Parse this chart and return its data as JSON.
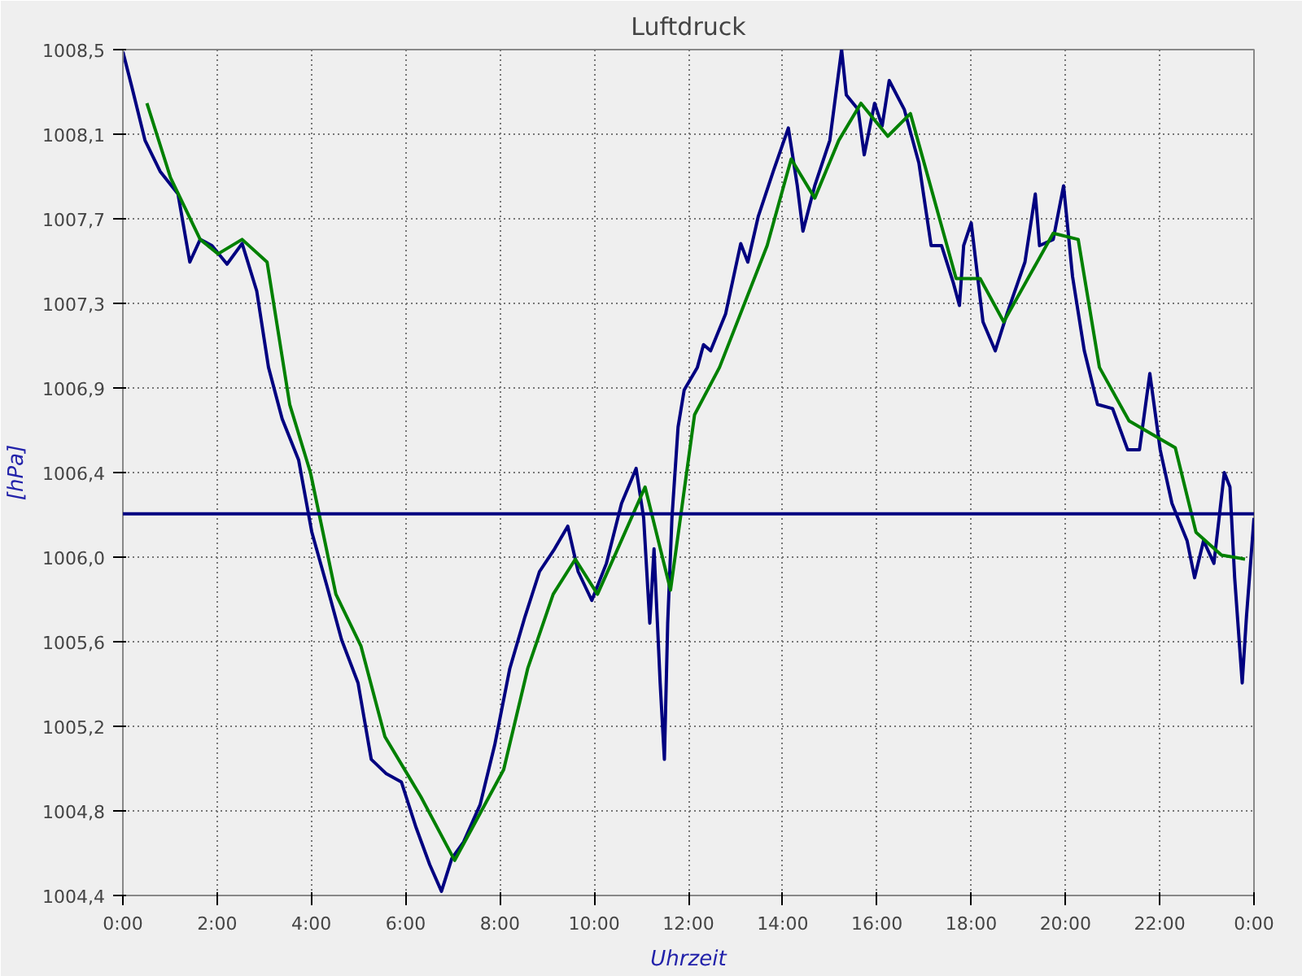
{
  "chart_data": {
    "type": "line",
    "title": "Luftdruck",
    "xlabel": "Uhrzeit",
    "ylabel": "[hPa]",
    "xlim": [
      0,
      24
    ],
    "ylim": [
      1004.4,
      1008.5
    ],
    "xticks": [
      {
        "value": 0,
        "label": "0:00"
      },
      {
        "value": 2,
        "label": "2:00"
      },
      {
        "value": 4,
        "label": "4:00"
      },
      {
        "value": 6,
        "label": "6:00"
      },
      {
        "value": 8,
        "label": "8:00"
      },
      {
        "value": 10,
        "label": "10:00"
      },
      {
        "value": 12,
        "label": "12:00"
      },
      {
        "value": 14,
        "label": "14:00"
      },
      {
        "value": 16,
        "label": "16:00"
      },
      {
        "value": 18,
        "label": "18:00"
      },
      {
        "value": 20,
        "label": "20:00"
      },
      {
        "value": 22,
        "label": "22:00"
      },
      {
        "value": 24,
        "label": "0:00"
      }
    ],
    "yticks": [
      {
        "value": 1004.4,
        "label": "1004,4"
      },
      {
        "value": 1004.81,
        "label": "1004,8"
      },
      {
        "value": 1005.22,
        "label": "1005,2"
      },
      {
        "value": 1005.63,
        "label": "1005,6"
      },
      {
        "value": 1006.04,
        "label": "1006,0"
      },
      {
        "value": 1006.45,
        "label": "1006,4"
      },
      {
        "value": 1006.86,
        "label": "1006,9"
      },
      {
        "value": 1007.27,
        "label": "1007,3"
      },
      {
        "value": 1007.68,
        "label": "1007,7"
      },
      {
        "value": 1008.09,
        "label": "1008,1"
      },
      {
        "value": 1008.5,
        "label": "1008,5"
      }
    ],
    "grid": true,
    "line_style": "solid",
    "ref_lines": [
      {
        "axis": "y",
        "value": 1006.25,
        "color": "#000080"
      }
    ],
    "series": [
      {
        "color": "#000080",
        "x": [
          0,
          0.19,
          0.47,
          0.79,
          1.17,
          1.42,
          1.64,
          1.89,
          2.21,
          2.53,
          2.84,
          3.09,
          3.38,
          3.73,
          4.01,
          4.33,
          4.64,
          4.99,
          5.27,
          5.59,
          5.91,
          6.22,
          6.51,
          6.76,
          6.98,
          7.23,
          7.58,
          7.89,
          8.21,
          8.53,
          8.84,
          9.16,
          9.44,
          9.66,
          9.95,
          10.26,
          10.58,
          10.89,
          11.05,
          11.18,
          11.27,
          11.4,
          11.49,
          11.56,
          11.65,
          11.78,
          11.91,
          12.19,
          12.32,
          12.47,
          12.79,
          13.11,
          13.26,
          13.48,
          13.8,
          14.12,
          14.31,
          14.43,
          14.68,
          15.0,
          15.25,
          15.35,
          15.6,
          15.73,
          15.95,
          16.11,
          16.26,
          16.58,
          16.89,
          17.15,
          17.37,
          17.62,
          17.75,
          17.84,
          18.0,
          18.25,
          18.51,
          18.76,
          19.14,
          19.36,
          19.45,
          19.74,
          19.96,
          20.15,
          20.4,
          20.68,
          21.0,
          21.32,
          21.57,
          21.79,
          22.01,
          22.26,
          22.58,
          22.74,
          22.93,
          23.15,
          23.37,
          23.49,
          23.59,
          23.75,
          23.84,
          24.0
        ],
        "values": [
          1008.49,
          1008.32,
          1008.06,
          1007.91,
          1007.8,
          1007.47,
          1007.58,
          1007.55,
          1007.46,
          1007.56,
          1007.33,
          1006.96,
          1006.71,
          1006.51,
          1006.16,
          1005.9,
          1005.64,
          1005.43,
          1005.06,
          1004.99,
          1004.95,
          1004.73,
          1004.55,
          1004.42,
          1004.58,
          1004.66,
          1004.84,
          1005.13,
          1005.5,
          1005.75,
          1005.97,
          1006.08,
          1006.19,
          1005.97,
          1005.83,
          1006.01,
          1006.3,
          1006.47,
          1006.23,
          1005.72,
          1006.08,
          1005.43,
          1005.06,
          1005.72,
          1006.23,
          1006.67,
          1006.85,
          1006.96,
          1007.07,
          1007.04,
          1007.22,
          1007.56,
          1007.47,
          1007.69,
          1007.91,
          1008.12,
          1007.84,
          1007.62,
          1007.84,
          1008.06,
          1008.5,
          1008.28,
          1008.21,
          1007.99,
          1008.24,
          1008.13,
          1008.35,
          1008.21,
          1007.95,
          1007.55,
          1007.55,
          1007.37,
          1007.26,
          1007.55,
          1007.66,
          1007.18,
          1007.04,
          1007.22,
          1007.47,
          1007.8,
          1007.55,
          1007.58,
          1007.84,
          1007.4,
          1007.04,
          1006.78,
          1006.76,
          1006.56,
          1006.56,
          1006.93,
          1006.56,
          1006.3,
          1006.12,
          1005.94,
          1006.12,
          1006.01,
          1006.45,
          1006.38,
          1005.94,
          1005.43,
          1005.75,
          1006.23
        ]
      },
      {
        "color": "#008000",
        "x": [
          0.51,
          1.01,
          1.64,
          2.02,
          2.53,
          3.06,
          3.54,
          3.98,
          4.52,
          5.05,
          5.56,
          6.32,
          7.04,
          7.42,
          8.08,
          8.59,
          9.13,
          9.6,
          10.07,
          10.48,
          11.08,
          11.62,
          12.13,
          12.66,
          13.67,
          14.18,
          14.68,
          15.19,
          15.66,
          16.23,
          16.71,
          17.05,
          17.68,
          18.19,
          18.69,
          19.74,
          20.27,
          20.72,
          21.35,
          22.33,
          22.77,
          23.31,
          23.81
        ],
        "values": [
          1008.24,
          1007.88,
          1007.58,
          1007.51,
          1007.58,
          1007.47,
          1006.78,
          1006.45,
          1005.86,
          1005.61,
          1005.17,
          1004.88,
          1004.57,
          1004.73,
          1005.01,
          1005.5,
          1005.86,
          1006.03,
          1005.86,
          1006.07,
          1006.38,
          1005.88,
          1006.73,
          1006.96,
          1007.55,
          1007.97,
          1007.78,
          1008.06,
          1008.24,
          1008.08,
          1008.19,
          1007.91,
          1007.39,
          1007.39,
          1007.18,
          1007.61,
          1007.58,
          1006.96,
          1006.7,
          1006.57,
          1006.16,
          1006.05,
          1006.03
        ]
      }
    ]
  }
}
